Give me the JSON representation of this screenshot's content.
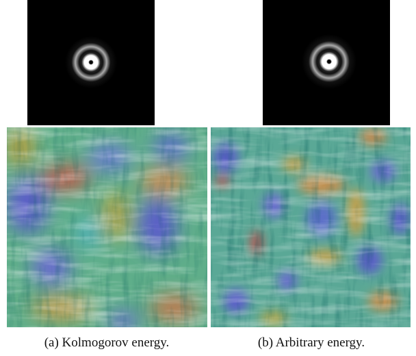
{
  "figure": {
    "subfigures": [
      {
        "caption": "(a) Kolmogorov energy."
      },
      {
        "caption": "(b) Arbitrary energy."
      }
    ]
  }
}
